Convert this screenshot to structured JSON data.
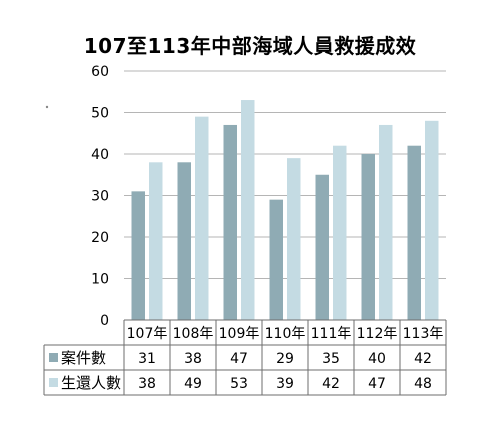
{
  "chart_data": {
    "type": "bar",
    "title": "107至113年中部海域人員救援成效",
    "categories": [
      "107年",
      "108年",
      "109年",
      "110年",
      "111年",
      "112年",
      "113年"
    ],
    "series": [
      {
        "name": "案件數",
        "values": [
          31,
          38,
          47,
          29,
          35,
          40,
          42
        ],
        "color": "#8fabb4"
      },
      {
        "name": "生還人數",
        "values": [
          38,
          49,
          53,
          39,
          42,
          47,
          48
        ],
        "color": "#c4dbe3"
      }
    ],
    "ylim": [
      0,
      60
    ],
    "yticks": [
      0,
      10,
      20,
      30,
      40,
      50,
      60
    ],
    "grid": true,
    "legend": "data-table",
    "xlabel": "",
    "ylabel": ""
  }
}
